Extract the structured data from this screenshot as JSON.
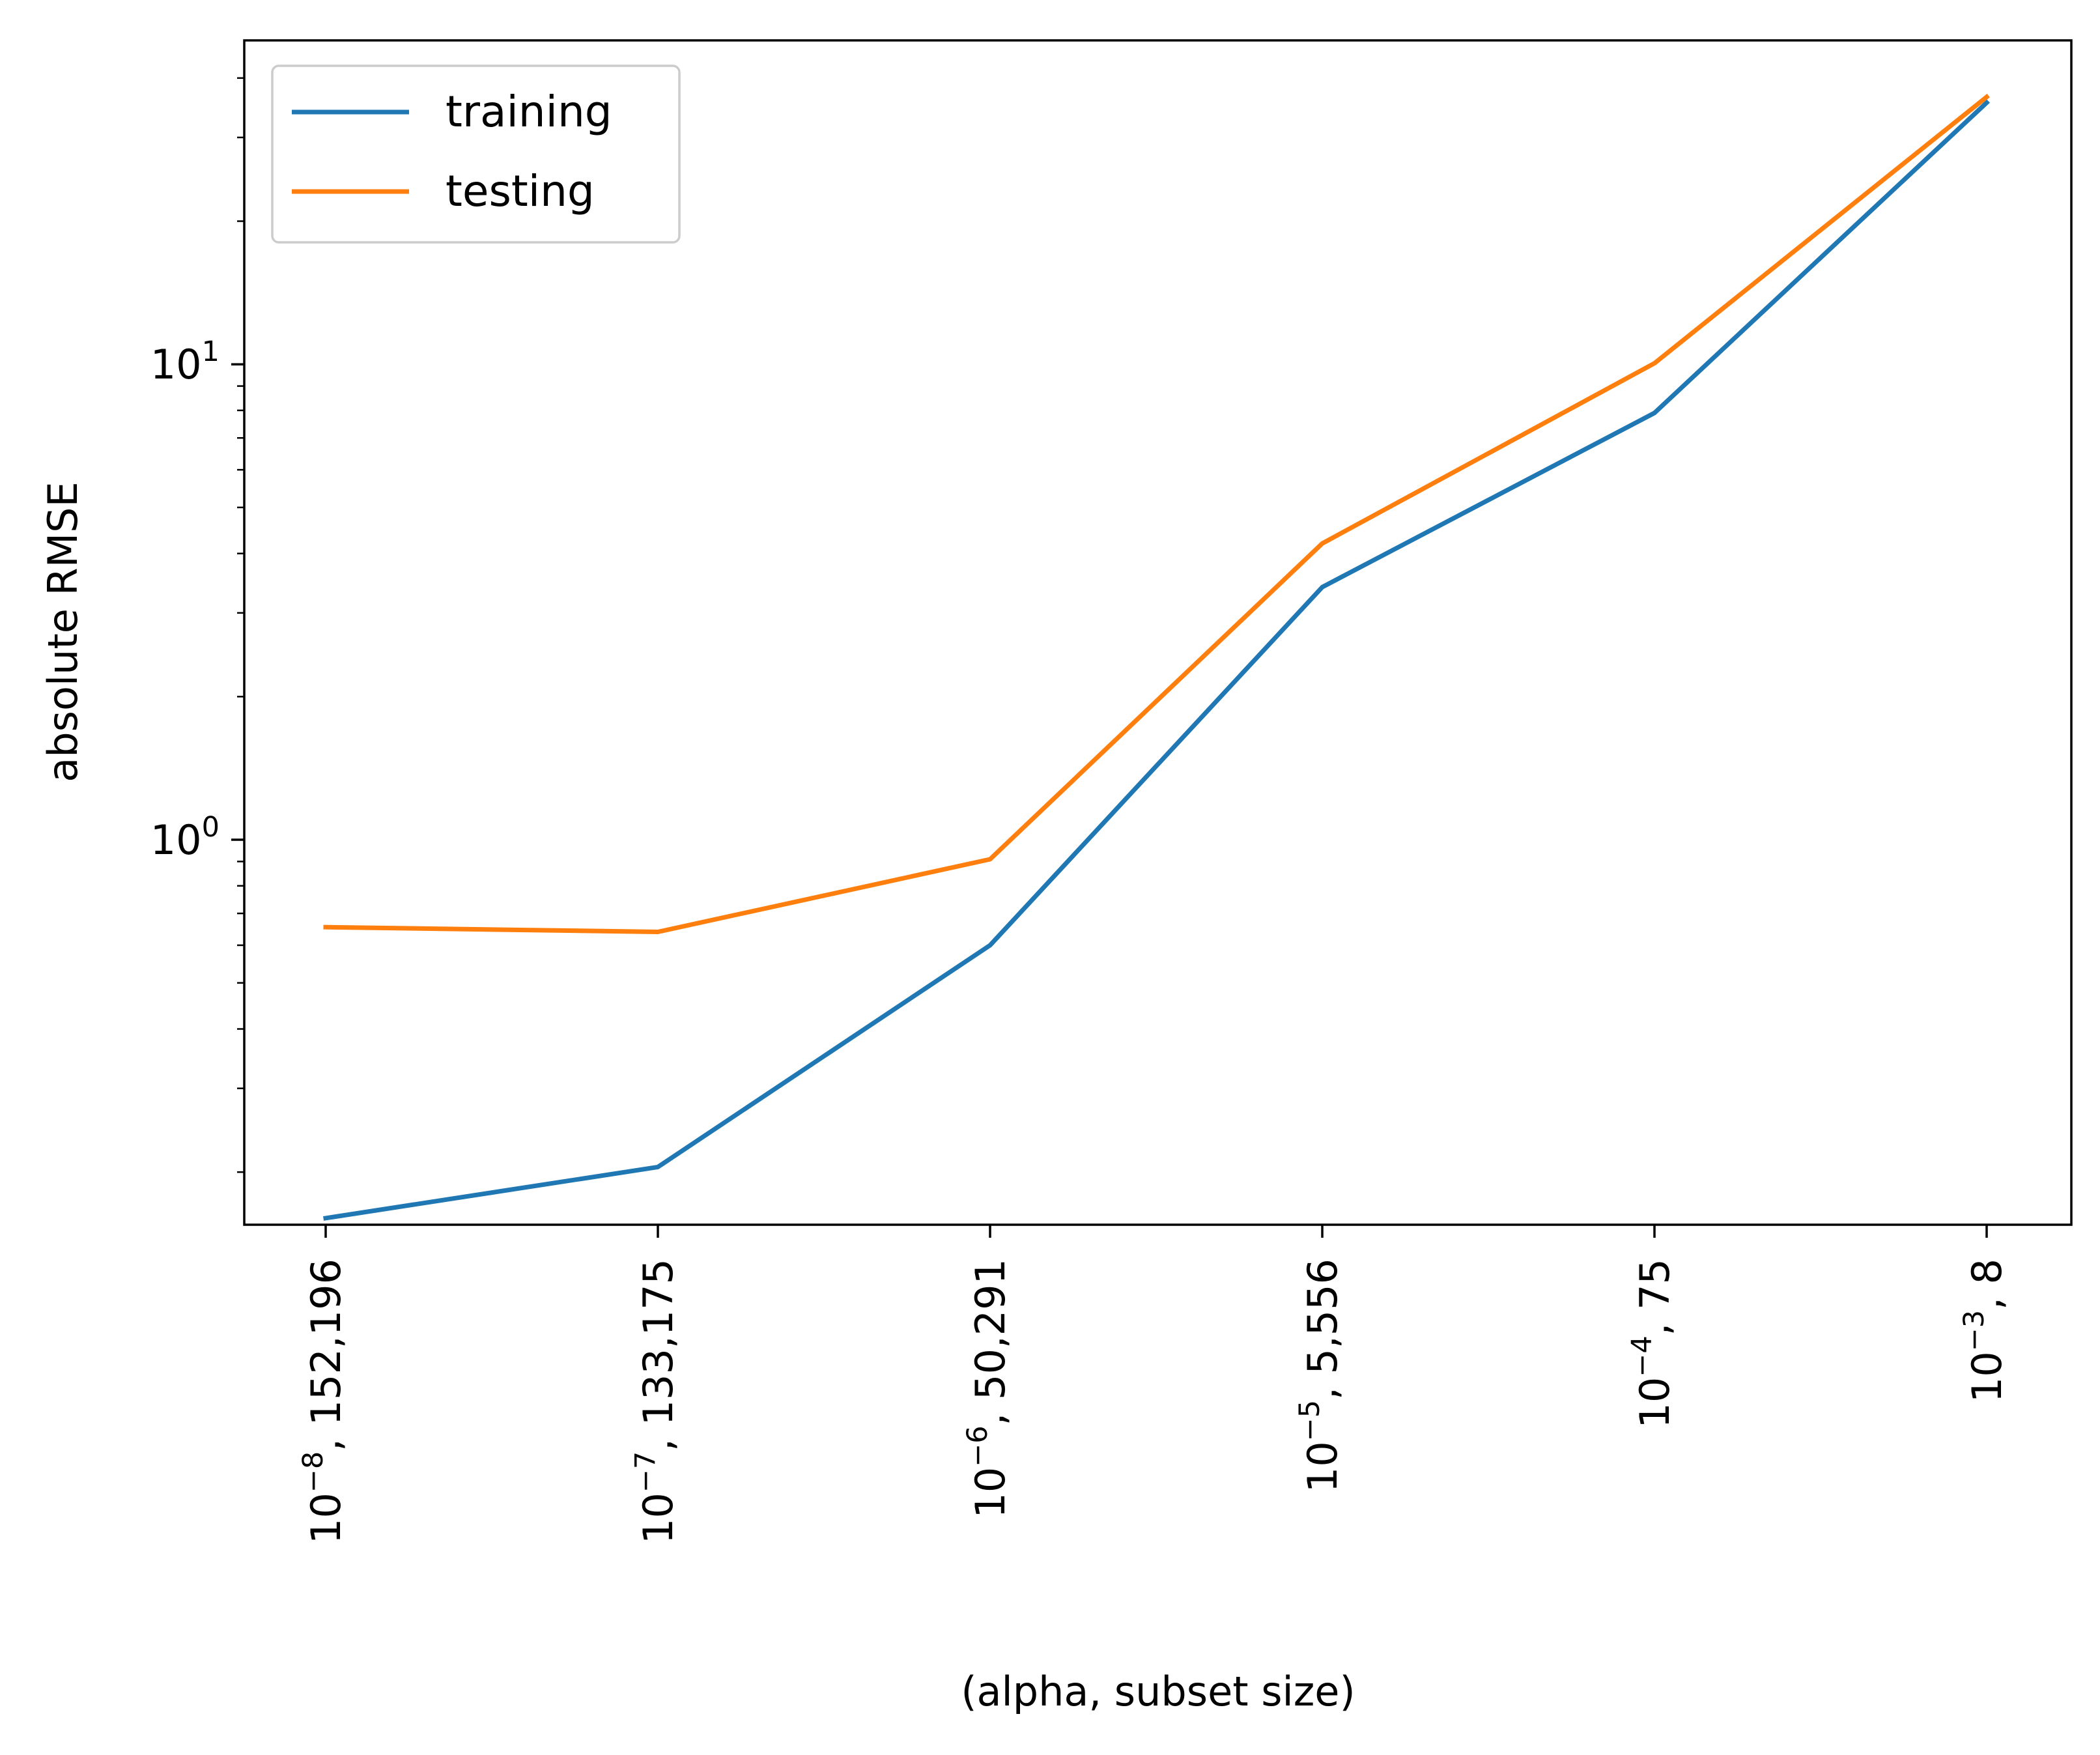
{
  "chart_data": {
    "type": "line",
    "xlabel": "(alpha, subset size)",
    "ylabel": "absolute RMSE",
    "yscale": "log",
    "ylim": [
      0.155,
      48
    ],
    "grid": false,
    "legend_position": "upper-left",
    "categories": [
      {
        "mant": "10",
        "exp": "−8",
        "rest": ", 152,196"
      },
      {
        "mant": "10",
        "exp": "−7",
        "rest": ", 133,175"
      },
      {
        "mant": "10",
        "exp": "−6",
        "rest": ", 50,291"
      },
      {
        "mant": "10",
        "exp": "−5",
        "rest": ", 5,556"
      },
      {
        "mant": "10",
        "exp": "−4",
        "rest": ", 75"
      },
      {
        "mant": "10",
        "exp": "−3",
        "rest": ", 8"
      }
    ],
    "y_major_ticks": [
      {
        "value": 1,
        "mant": "10",
        "exp": "0"
      },
      {
        "value": 10,
        "mant": "10",
        "exp": "1"
      }
    ],
    "series": [
      {
        "name": "training",
        "color": "#1f77b4",
        "values": [
          0.16,
          0.205,
          0.6,
          3.4,
          7.9,
          35.5
        ]
      },
      {
        "name": "testing",
        "color": "#ff7f0e",
        "values": [
          0.655,
          0.64,
          0.91,
          4.2,
          10.05,
          36.5
        ]
      }
    ]
  }
}
